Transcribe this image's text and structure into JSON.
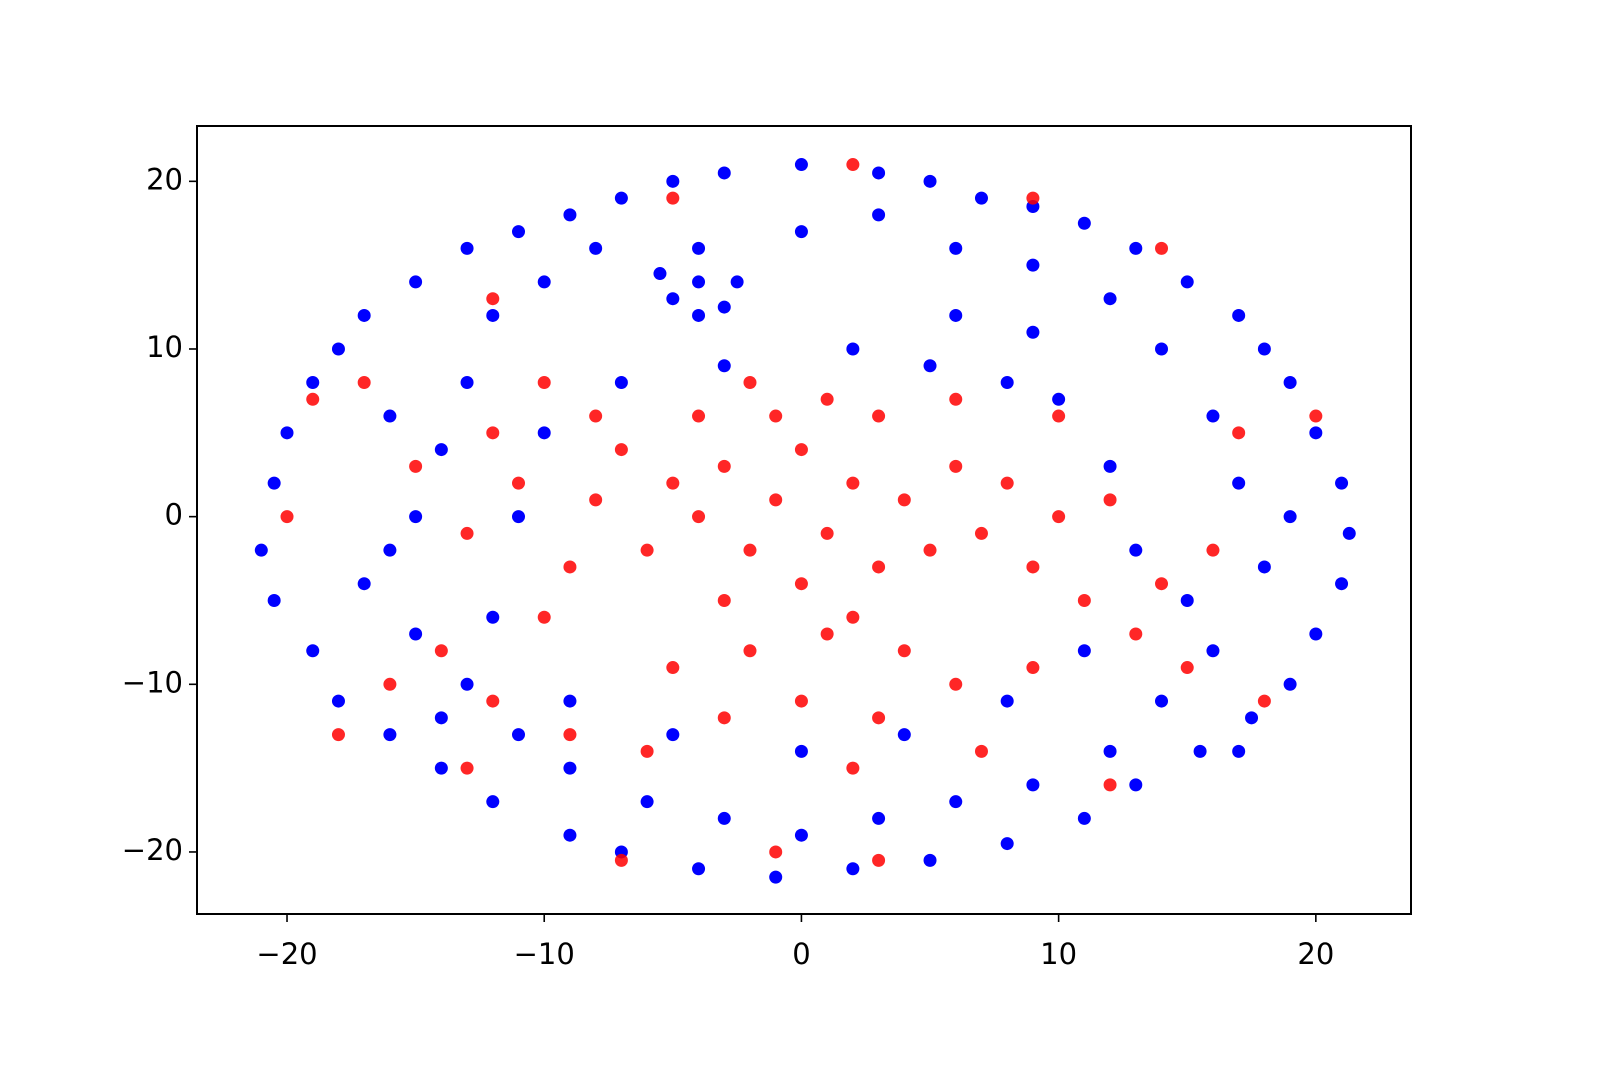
{
  "chart_data": {
    "type": "scatter",
    "xlim": [
      -23.5,
      23.7
    ],
    "ylim": [
      -23.7,
      23.3
    ],
    "xticks": [
      {
        "value": -20,
        "label": "−20"
      },
      {
        "value": -10,
        "label": "−10"
      },
      0,
      10,
      20
    ],
    "yticks": [
      {
        "value": -20,
        "label": "−20"
      },
      {
        "value": -10,
        "label": "−10"
      },
      0,
      10,
      20
    ],
    "series": [
      {
        "color": "#0000ff",
        "x": [
          -21,
          -20.5,
          -20,
          -19,
          -18,
          -17,
          -15,
          -13,
          -11,
          -9,
          -7,
          -5,
          -3,
          0,
          3,
          5,
          7,
          9,
          11,
          13,
          15,
          17,
          18,
          19,
          20,
          21,
          21.3,
          21,
          20,
          19,
          17.5,
          15.5,
          13,
          11,
          8,
          5,
          2,
          -1,
          -4,
          -7,
          -9,
          -12,
          -14,
          -16,
          -18,
          -19,
          -20.5,
          -17,
          -15,
          -14,
          -13,
          -12,
          -10,
          -8,
          -4,
          0,
          3,
          6,
          9,
          12,
          14,
          16,
          17,
          18,
          16,
          14,
          12,
          9,
          6,
          3,
          0,
          -3,
          -6,
          -9,
          -11,
          -13,
          -15,
          -16,
          -4,
          -5,
          -3,
          -5.5,
          -2.5,
          -4,
          2,
          5,
          8,
          10,
          12,
          13,
          15,
          11,
          8,
          4,
          0,
          -5,
          -9,
          -12,
          -11,
          -10,
          -7,
          -3,
          6,
          9,
          -14,
          -16,
          19,
          17
        ],
        "values": [
          -2,
          2,
          5,
          8,
          10,
          12,
          14,
          16,
          17,
          18,
          19,
          20,
          20.5,
          21,
          20.5,
          20,
          19,
          18.5,
          17.5,
          16,
          14,
          12,
          10,
          8,
          5,
          2,
          -1,
          -4,
          -7,
          -10,
          -12,
          -14,
          -16,
          -18,
          -19.5,
          -20.5,
          -21,
          -21.5,
          -21,
          -20,
          -19,
          -17,
          -15,
          -13,
          -11,
          -8,
          -5,
          -4,
          0,
          4,
          8,
          12,
          14,
          16,
          16,
          17,
          18,
          16,
          15,
          13,
          10,
          6,
          2,
          -3,
          -8,
          -11,
          -14,
          -16,
          -17,
          -18,
          -19,
          -18,
          -17,
          -15,
          -13,
          -10,
          -7,
          -2,
          14,
          13,
          12.5,
          14.5,
          14,
          12,
          10,
          9,
          8,
          7,
          3,
          -2,
          -5,
          -8,
          -11,
          -13,
          -14,
          -13,
          -11,
          -6,
          0,
          5,
          8,
          9,
          12,
          11,
          -12,
          6,
          0,
          -14
        ]
      },
      {
        "color": "#ff0000",
        "x": [
          -5,
          -4,
          -3,
          -2,
          -1,
          0,
          1,
          2,
          3,
          4,
          -6,
          -3,
          0,
          2,
          5,
          6,
          -1,
          -4,
          3,
          1,
          -2,
          4,
          7,
          8,
          9,
          10,
          11,
          12,
          13,
          -7,
          -8,
          -9,
          -10,
          -11,
          -12,
          -13,
          -14,
          -12,
          -9,
          -6,
          -3,
          0,
          3,
          6,
          9,
          14,
          15,
          -10,
          -8,
          6,
          10,
          -16,
          -18,
          -20,
          -19,
          -17,
          18,
          17,
          20,
          14,
          9,
          2,
          -5,
          -12,
          -1,
          3,
          -7,
          12,
          -13,
          -5,
          2,
          7,
          16,
          -15,
          -2,
          1
        ],
        "values": [
          2,
          0,
          3,
          -2,
          1,
          4,
          -1,
          2,
          -3,
          1,
          -2,
          -5,
          -4,
          -6,
          -2,
          3,
          6,
          6,
          6,
          -7,
          -8,
          -8,
          -1,
          2,
          -3,
          0,
          -5,
          1,
          -7,
          4,
          1,
          -3,
          -6,
          2,
          5,
          -1,
          -8,
          -11,
          -13,
          -14,
          -12,
          -11,
          -12,
          -10,
          -9,
          -4,
          -9,
          8,
          6,
          7,
          6,
          -10,
          -13,
          0,
          7,
          8,
          -11,
          5,
          6,
          16,
          19,
          21,
          19,
          13,
          -20,
          -20.5,
          -20.5,
          -16,
          -15,
          -9,
          -15,
          -14,
          -2,
          3,
          8,
          7
        ]
      }
    ]
  }
}
